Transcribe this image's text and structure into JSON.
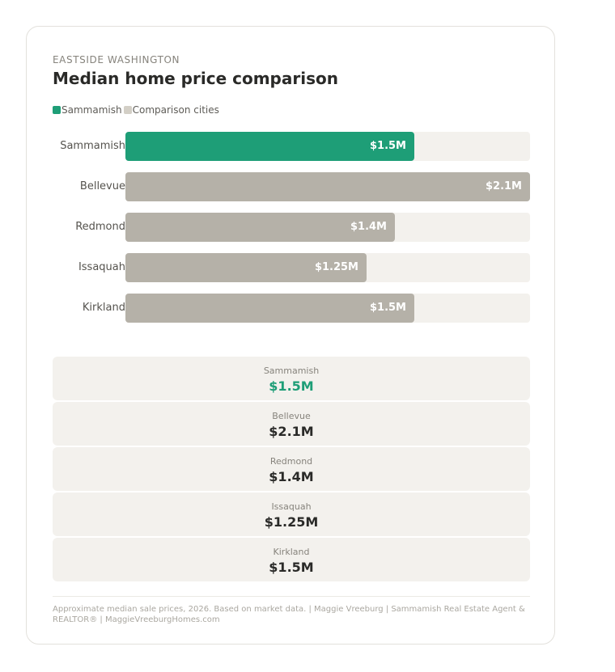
{
  "eyebrow": "EASTSIDE WASHINGTON",
  "title": "Median home price comparison",
  "colors": {
    "highlight": "#1e9e77",
    "comparison": "#b5b1a8",
    "track": "#f3f1ed"
  },
  "legend": {
    "highlight_label": "Sammamish",
    "comparison_label": "Comparison cities"
  },
  "chart_data": {
    "type": "bar",
    "orientation": "horizontal",
    "title": "Median home price comparison",
    "categories": [
      "Sammamish",
      "Bellevue",
      "Redmond",
      "Issaquah",
      "Kirkland"
    ],
    "values": [
      1.5,
      2.1,
      1.4,
      1.25,
      1.5
    ],
    "value_labels": [
      "$1.5M",
      "$2.1M",
      "$1.4M",
      "$1.25M",
      "$1.5M"
    ],
    "highlight": "Sammamish",
    "xlim": [
      0,
      2.1
    ],
    "grid": false,
    "legend_position": "top-left"
  },
  "stats": [
    {
      "name": "Sammamish",
      "value": "$1.5M",
      "highlight": true
    },
    {
      "name": "Bellevue",
      "value": "$2.1M",
      "highlight": false
    },
    {
      "name": "Redmond",
      "value": "$1.4M",
      "highlight": false
    },
    {
      "name": "Issaquah",
      "value": "$1.25M",
      "highlight": false
    },
    {
      "name": "Kirkland",
      "value": "$1.5M",
      "highlight": false
    }
  ],
  "footnote": "Approximate median sale prices, 2026. Based on market data.  |  Maggie Vreeburg | Sammamish Real Estate Agent & REALTOR® | MaggieVreeburgHomes.com"
}
